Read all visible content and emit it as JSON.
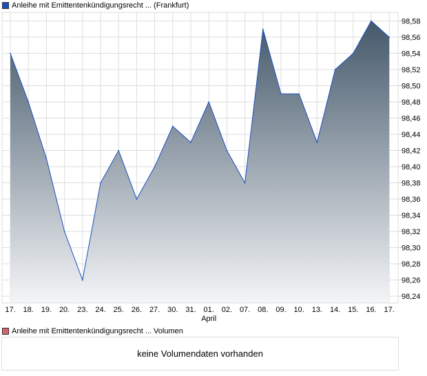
{
  "legend_price": "Anleihe mit Emittentenkündigungsrecht ... (Frankfurt)",
  "legend_volume": "Anleihe mit Emittentenkündigungsrecht ... Volumen",
  "volume_message": "keine Volumendaten vorhanden",
  "colors": {
    "line": "#1a4fbf",
    "fill_top": "#44586a",
    "fill_bottom": "#f4f5f7",
    "price_legend": "#1a4fbf",
    "volume_legend": "#d9636a",
    "grid": "#dddddd"
  },
  "chart_data": {
    "type": "area",
    "categories": [
      "17.",
      "18.",
      "19.",
      "20.",
      "23.",
      "24.",
      "25.",
      "26.",
      "27.",
      "30.",
      "31.",
      "01.",
      "02.",
      "07.",
      "08.",
      "09.",
      "10.",
      "13.",
      "14.",
      "15.",
      "16.",
      "17."
    ],
    "month_label": "April",
    "month_label_index": 11,
    "values": [
      98.54,
      98.48,
      98.41,
      98.32,
      98.26,
      98.38,
      98.42,
      98.36,
      98.4,
      98.45,
      98.43,
      98.48,
      98.42,
      98.38,
      98.57,
      98.49,
      98.49,
      98.43,
      98.52,
      98.54,
      98.58,
      98.56
    ],
    "yticks": [
      "98,24",
      "98,26",
      "98,28",
      "98,30",
      "98,32",
      "98,34",
      "98,36",
      "98,38",
      "98,40",
      "98,42",
      "98,44",
      "98,46",
      "98,48",
      "98,50",
      "98,52",
      "98,54",
      "98,56",
      "98,58"
    ],
    "ylim": [
      98.2316,
      98.5906
    ],
    "grid": true
  }
}
